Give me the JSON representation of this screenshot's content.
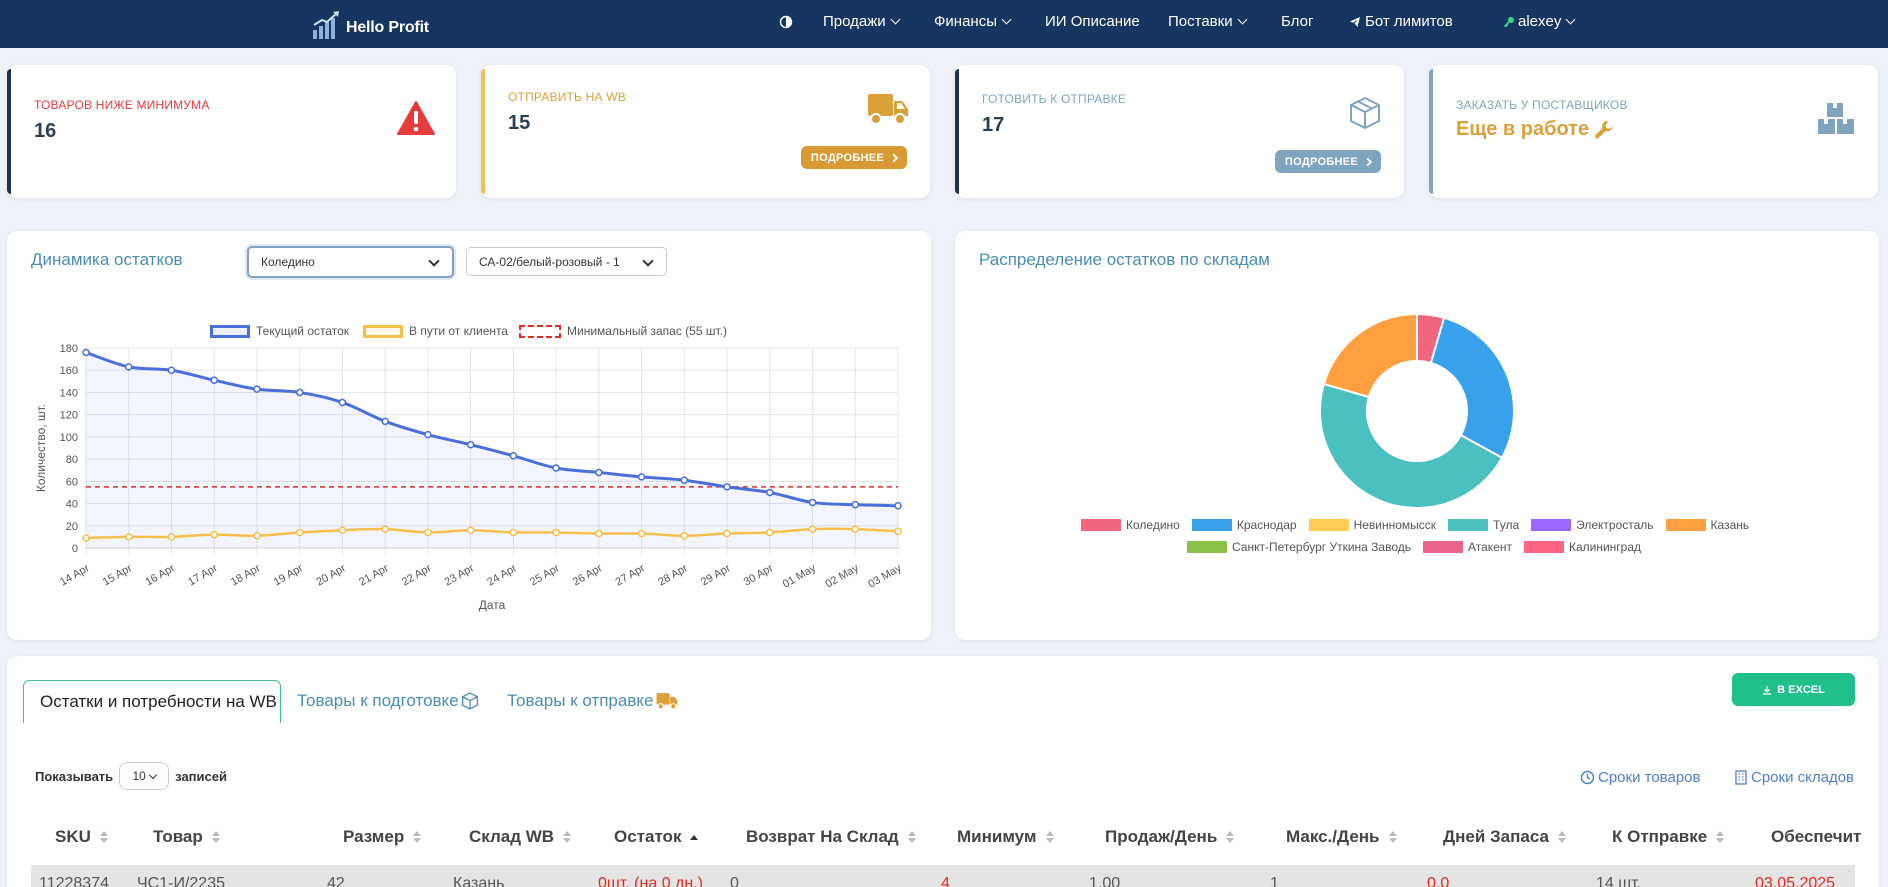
{
  "navbar": {
    "logo_text": "Hello Profit",
    "items": [
      {
        "label": "Продажи",
        "chevron": true
      },
      {
        "label": "Финансы",
        "chevron": true
      },
      {
        "label": "ИИ Описание",
        "chevron": false
      },
      {
        "label": "Поставки",
        "chevron": true
      },
      {
        "label": "Блог",
        "chevron": false
      },
      {
        "label": "Бот лимитов",
        "chevron": false
      },
      {
        "label": "alexey",
        "chevron": true
      }
    ]
  },
  "stats": [
    {
      "title": "Товаров ниже минимума",
      "value": "16",
      "color": "#e83b3b",
      "icon": "warning-icon"
    },
    {
      "title": "Отправить на WB",
      "value": "15",
      "button": "ПОДРОБНЕЕ",
      "color": "#dca03a",
      "icon": "truck-icon"
    },
    {
      "title": "Готовить к отправке",
      "value": "17",
      "button": "ПОДРОБНЕЕ",
      "color": "#7ea4bf",
      "icon": "box-icon"
    },
    {
      "title": "Заказать у поставщиков",
      "value": "Еще в работе",
      "color": "#dca03a",
      "icon": "boxes-icon"
    }
  ],
  "stock_chart": {
    "title": "Динамика остатков",
    "warehouse_select": "Коледино",
    "product_select": "СА-02/белый-розовый - 1",
    "chart_data": {
      "type": "line",
      "x": [
        "14 Apr",
        "15 Apr",
        "16 Apr",
        "17 Apr",
        "18 Apr",
        "19 Apr",
        "20 Apr",
        "21 Apr",
        "22 Apr",
        "23 Apr",
        "24 Apr",
        "25 Apr",
        "26 Apr",
        "27 Apr",
        "28 Apr",
        "29 Apr",
        "30 Apr",
        "01 May",
        "02 May",
        "03 May"
      ],
      "series": [
        {
          "name": "Текущий остаток",
          "values": [
            176,
            163,
            160,
            151,
            143,
            140,
            131,
            114,
            102,
            93,
            83,
            72,
            68,
            64,
            61,
            55,
            50,
            41,
            39,
            38
          ],
          "color": "#4a6fdc"
        },
        {
          "name": "В пути от клиента",
          "values": [
            9,
            10,
            10,
            12,
            11,
            14,
            16,
            17,
            14,
            16,
            14,
            14,
            13,
            13,
            11,
            13,
            14,
            17,
            17,
            15
          ],
          "color": "#f5c04a"
        },
        {
          "name": "Минимальный запас (55 шт.)",
          "values": [
            55,
            55,
            55,
            55,
            55,
            55,
            55,
            55,
            55,
            55,
            55,
            55,
            55,
            55,
            55,
            55,
            55,
            55,
            55,
            55
          ],
          "color": "#e02b20",
          "dashed": true
        }
      ],
      "ylim": [
        0,
        180
      ],
      "yticks": [
        0,
        20,
        40,
        60,
        80,
        100,
        120,
        140,
        160,
        180
      ],
      "xlabel": "Дата",
      "ylabel": "Количество, шт.",
      "grid": true,
      "legend": "top"
    }
  },
  "distribution_chart": {
    "title": "Распределение остатков по складам",
    "chart_data": {
      "type": "pie",
      "categories": [
        "Коледино",
        "Краснодар",
        "Невинномысск",
        "Тула",
        "Электросталь",
        "Казань",
        "Санкт-Петербург Уткина Заводь",
        "Атакент",
        "Калининград"
      ],
      "values": [
        4.5,
        28.5,
        0,
        46.5,
        0,
        20.5,
        0,
        0,
        0
      ],
      "colors": [
        "#f2657f",
        "#37a2eb",
        "#ffcd56",
        "#4bc0c0",
        "#9966ff",
        "#ff9f40",
        "#8bc34a",
        "#e8648a",
        "#ff6384"
      ],
      "legend": "bottom"
    }
  },
  "tabs": [
    {
      "label": "Остатки и потребности на WB",
      "active": true
    },
    {
      "label": "Товары к подготовке",
      "icon": "box-icon"
    },
    {
      "label": "Товары к отправке",
      "icon": "truck-icon"
    }
  ],
  "excel_button": "В EXCEL",
  "table_controls": {
    "show_label": "Показывать",
    "per_page": "10",
    "records_label": "записей",
    "link_product_terms": "Сроки товаров",
    "link_warehouse_terms": "Сроки складов"
  },
  "table": {
    "columns": [
      "SKU",
      "Товар",
      "Размер",
      "Склад WB",
      "Остаток",
      "Возврат На Склад",
      "Минимум",
      "Продаж/День",
      "Макс./День",
      "Дней Запаса",
      "К Отправке",
      "Обеспечит"
    ],
    "row": [
      "11228374",
      "ЧС1-И/2235",
      "42",
      "Казань",
      "0шт. (на 0 дн.)",
      "0",
      "4",
      "1.00",
      "1",
      "0.0",
      "14 шт.",
      "03.05.2025"
    ]
  }
}
